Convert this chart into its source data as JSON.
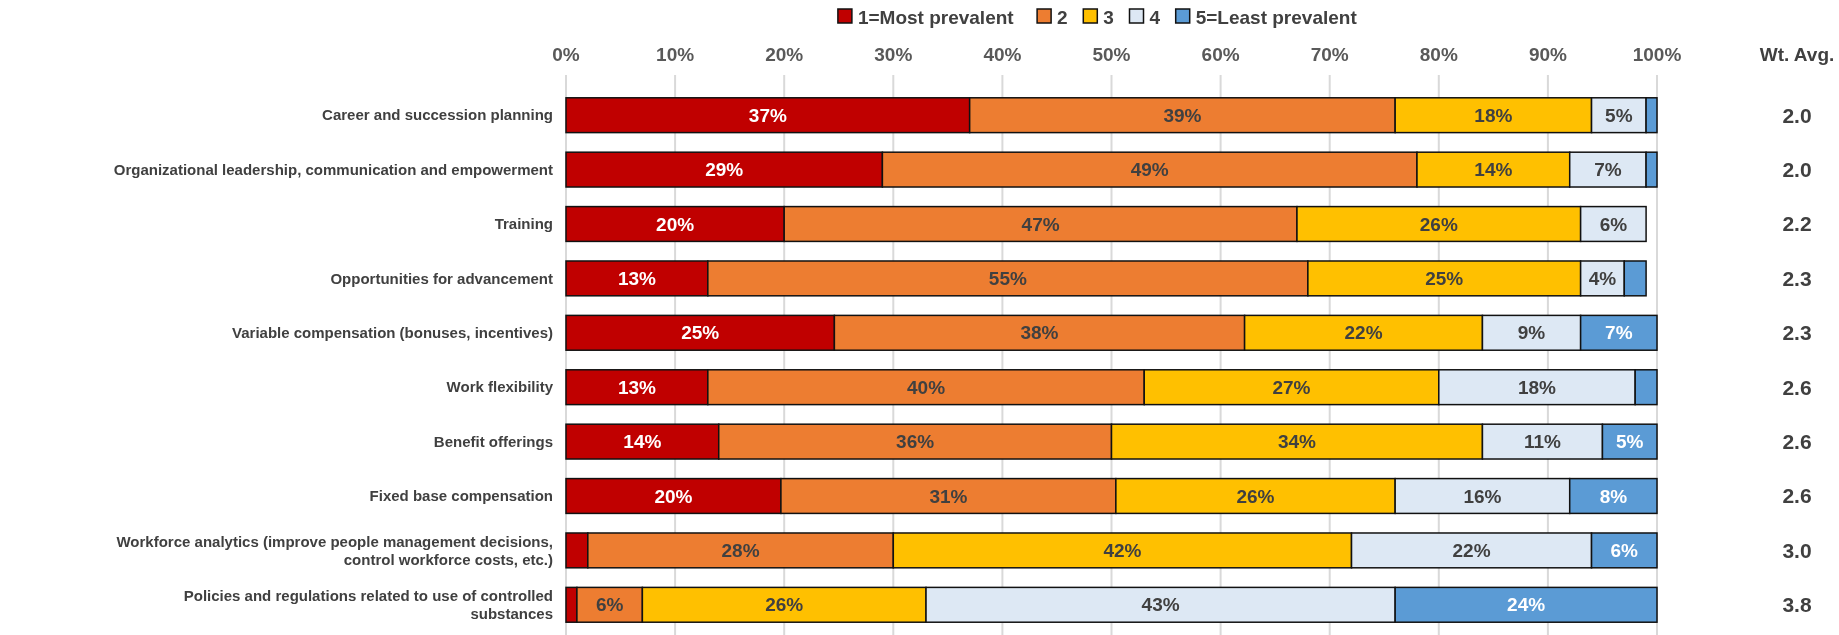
{
  "chart_data": {
    "type": "bar",
    "orientation": "horizontal",
    "stacked": true,
    "legend": "top",
    "grid": "x",
    "categories": [
      "Career and succession planning",
      "Organizational leadership, communication and empowerment",
      "Training",
      "Opportunities for advancement",
      "Variable compensation (bonuses, incentives)",
      "Work flexibility",
      "Benefit offerings",
      "Fixed base compensation",
      "Workforce analytics (improve people management decisions, control workforce costs, etc.)",
      "Policies and regulations related to use of controlled substances"
    ],
    "xlim": [
      0,
      100
    ],
    "xticks": [
      {
        "value": 0,
        "label": "0%"
      },
      {
        "value": 10,
        "label": "10%"
      },
      {
        "value": 20,
        "label": "20%"
      },
      {
        "value": 30,
        "label": "30%"
      },
      {
        "value": 40,
        "label": "40%"
      },
      {
        "value": 50,
        "label": "50%"
      },
      {
        "value": 60,
        "label": "60%"
      },
      {
        "value": 70,
        "label": "70%"
      },
      {
        "value": 80,
        "label": "80%"
      },
      {
        "value": 90,
        "label": "90%"
      },
      {
        "value": 100,
        "label": "100%"
      }
    ],
    "series": [
      {
        "name": "1=Most prevalent",
        "color": "#c00000",
        "values": [
          37,
          29,
          20,
          13,
          24.6,
          13,
          14,
          19.7,
          2,
          1
        ],
        "value_labels": [
          "37%",
          "29%",
          "20%",
          "13%",
          "25%",
          "13%",
          "14%",
          "20%",
          null,
          null
        ]
      },
      {
        "name": "2",
        "color": "#ed7d31",
        "values": [
          39,
          49,
          47,
          55,
          37.6,
          40,
          36,
          30.7,
          28,
          6
        ],
        "value_labels": [
          "39%",
          "49%",
          "47%",
          "55%",
          "38%",
          "40%",
          "36%",
          "31%",
          "28%",
          "6%"
        ]
      },
      {
        "name": "3",
        "color": "#ffc000",
        "values": [
          18,
          14,
          26,
          25,
          21.8,
          27,
          34,
          25.6,
          42,
          26
        ],
        "value_labels": [
          "18%",
          "14%",
          "26%",
          "25%",
          "22%",
          "27%",
          "34%",
          "26%",
          "42%",
          "26%"
        ]
      },
      {
        "name": "4",
        "color": "#dde8f4",
        "values": [
          5,
          7,
          6,
          4,
          9,
          18,
          11,
          16,
          22,
          43
        ],
        "value_labels": [
          "5%",
          "7%",
          "6%",
          "4%",
          "9%",
          "18%",
          "11%",
          "16%",
          "22%",
          "43%"
        ]
      },
      {
        "name": "5=Least prevalent",
        "color": "#5b9bd5",
        "values": [
          1,
          1,
          null,
          2,
          7,
          2,
          5,
          8,
          6,
          24
        ],
        "value_labels": [
          null,
          null,
          null,
          null,
          "7%",
          null,
          "5%",
          "8%",
          "6%",
          "24%"
        ]
      }
    ],
    "annotations": [
      "Wt. Avg.",
      "2.0",
      "2.0",
      "2.2",
      "2.3",
      "2.3",
      "2.6",
      "2.6",
      "2.6",
      "3.0",
      "3.8"
    ]
  }
}
